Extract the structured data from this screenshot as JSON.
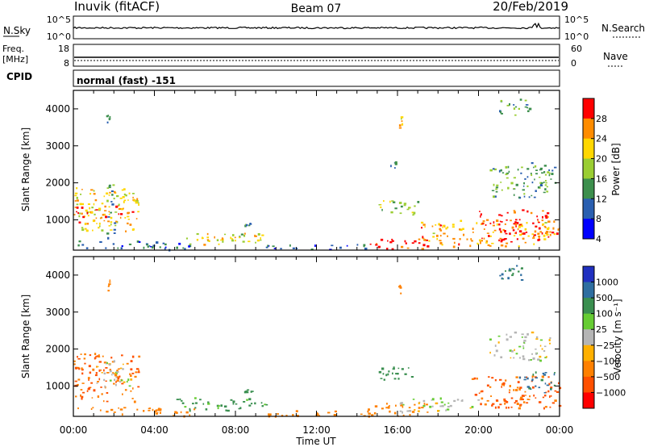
{
  "header": {
    "station": "Inuvik (fitACF)",
    "beam": "Beam 07",
    "date": "20/Feb/2019"
  },
  "panels": {
    "nsky": {
      "left_label": "N.Sky",
      "left_ticks": [
        "10^5",
        "10^0"
      ],
      "right_ticks": [
        "10^5",
        "10^0"
      ],
      "right_label": "N.Search"
    },
    "freq": {
      "left_label_line1": "Freq.",
      "left_label_line2": "[MHz]",
      "left_ticks": [
        "18",
        "8"
      ],
      "right_ticks": [
        "60",
        "0"
      ],
      "right_label": "Nave"
    },
    "cpid": {
      "label": "CPID",
      "text": "normal (fast) -151"
    }
  },
  "colors": {
    "power_scale": [
      "#0000ff",
      "#2a5fb0",
      "#3d8f4d",
      "#9acd32",
      "#ffd700",
      "#ff8c00",
      "#ff0000"
    ],
    "velocity_scale": [
      "#2030c0",
      "#2e6ea0",
      "#3a8f50",
      "#66cc33",
      "#b5b5b5",
      "#ffb000",
      "#ff8000",
      "#ff5000",
      "#ff0000"
    ]
  },
  "chart_data": [
    {
      "type": "heatmap",
      "name": "power",
      "ylabel": "Slant Range [km]",
      "yticks": [
        "1000",
        "2000",
        "3000",
        "4000"
      ],
      "ylim": [
        180,
        4500
      ],
      "xlim": [
        "00:00",
        "24:00"
      ],
      "xticks": [
        "00:00",
        "04:00",
        "08:00",
        "12:00",
        "16:00",
        "20:00",
        "00:00"
      ],
      "colorbar_label": "Power [dB]",
      "colorbar_ticks": [
        "4",
        "8",
        "12",
        "16",
        "20",
        "24",
        "28"
      ],
      "colorbar_range": [
        0,
        30
      ],
      "regions": [
        {
          "t0": 0.0,
          "t1": 3.2,
          "r0": 700,
          "r1": 1900,
          "v": 18
        },
        {
          "t0": 0.0,
          "t1": 3.0,
          "r0": 900,
          "r1": 1400,
          "v": 25
        },
        {
          "t0": 1.6,
          "t1": 2.0,
          "r0": 500,
          "r1": 2100,
          "v": 10
        },
        {
          "t0": 0.2,
          "t1": 4.5,
          "r0": 250,
          "r1": 450,
          "v": 8
        },
        {
          "t0": 3.4,
          "t1": 6.0,
          "r0": 200,
          "r1": 400,
          "v": 6
        },
        {
          "t0": 5.5,
          "t1": 9.5,
          "r0": 350,
          "r1": 650,
          "v": 17
        },
        {
          "t0": 6.0,
          "t1": 9.0,
          "r0": 450,
          "r1": 600,
          "v": 22
        },
        {
          "t0": 8.4,
          "t1": 8.8,
          "r0": 850,
          "r1": 950,
          "v": 10
        },
        {
          "t0": 9.5,
          "t1": 14.5,
          "r0": 200,
          "r1": 350,
          "v": 7
        },
        {
          "t0": 14.5,
          "t1": 17.5,
          "r0": 200,
          "r1": 500,
          "v": 28
        },
        {
          "t0": 15.0,
          "t1": 17.0,
          "r0": 1150,
          "r1": 1600,
          "v": 14
        },
        {
          "t0": 17.0,
          "t1": 24.0,
          "r0": 300,
          "r1": 1000,
          "v": 22
        },
        {
          "t0": 20.0,
          "t1": 23.5,
          "r0": 400,
          "r1": 1300,
          "v": 27
        },
        {
          "t0": 20.5,
          "t1": 23.5,
          "r0": 1600,
          "r1": 2500,
          "v": 11
        },
        {
          "t0": 22.5,
          "t1": 23.8,
          "r0": 2000,
          "r1": 2600,
          "v": 12
        },
        {
          "t0": 15.6,
          "t1": 15.9,
          "r0": 2400,
          "r1": 2600,
          "v": 12
        },
        {
          "t0": 16.0,
          "t1": 16.2,
          "r0": 3500,
          "r1": 3800,
          "v": 20
        },
        {
          "t0": 1.6,
          "t1": 1.8,
          "r0": 3600,
          "r1": 4000,
          "v": 12
        },
        {
          "t0": 21.0,
          "t1": 22.5,
          "r0": 3800,
          "r1": 4300,
          "v": 10
        }
      ]
    },
    {
      "type": "heatmap",
      "name": "velocity",
      "ylabel": "Slant Range [km]",
      "yticks": [
        "1000",
        "2000",
        "3000",
        "4000"
      ],
      "ylim": [
        180,
        4500
      ],
      "xlim": [
        "00:00",
        "24:00"
      ],
      "xticks": [
        "00:00",
        "04:00",
        "08:00",
        "12:00",
        "16:00",
        "20:00",
        "00:00"
      ],
      "xlabel": "Time UT",
      "colorbar_label": "Velocity [m s⁻¹]",
      "colorbar_ticks": [
        "1000",
        "500",
        "100",
        "25",
        "−25",
        "−100",
        "−500",
        "−1000"
      ],
      "regions": [
        {
          "t0": 0.0,
          "t1": 3.2,
          "r0": 600,
          "r1": 1900,
          "v": -300
        },
        {
          "t0": 1.0,
          "t1": 2.8,
          "r0": 1000,
          "r1": 1700,
          "v": 0
        },
        {
          "t0": 0.2,
          "t1": 4.5,
          "r0": 250,
          "r1": 450,
          "v": -150
        },
        {
          "t0": 3.4,
          "t1": 6.0,
          "r0": 200,
          "r1": 400,
          "v": -120
        },
        {
          "t0": 5.0,
          "t1": 9.5,
          "r0": 350,
          "r1": 700,
          "v": 80
        },
        {
          "t0": 8.4,
          "t1": 8.8,
          "r0": 850,
          "r1": 950,
          "v": 200
        },
        {
          "t0": 9.5,
          "t1": 14.5,
          "r0": 200,
          "r1": 350,
          "v": -120
        },
        {
          "t0": 14.5,
          "t1": 17.5,
          "r0": 200,
          "r1": 600,
          "v": -200
        },
        {
          "t0": 15.0,
          "t1": 16.8,
          "r0": 1150,
          "r1": 1600,
          "v": 150
        },
        {
          "t0": 16.0,
          "t1": 20.0,
          "r0": 300,
          "r1": 700,
          "v": 0
        },
        {
          "t0": 19.5,
          "t1": 24.0,
          "r0": 400,
          "r1": 1300,
          "v": -350
        },
        {
          "t0": 20.5,
          "t1": 23.5,
          "r0": 1700,
          "r1": 2500,
          "v": 0
        },
        {
          "t0": 22.0,
          "t1": 23.8,
          "r0": 800,
          "r1": 1400,
          "v": 400
        },
        {
          "t0": 16.0,
          "t1": 16.2,
          "r0": 3500,
          "r1": 3800,
          "v": -150
        },
        {
          "t0": 1.6,
          "t1": 1.8,
          "r0": 3600,
          "r1": 4000,
          "v": -150
        },
        {
          "t0": 21.0,
          "t1": 22.5,
          "r0": 3800,
          "r1": 4300,
          "v": 300
        }
      ]
    }
  ]
}
